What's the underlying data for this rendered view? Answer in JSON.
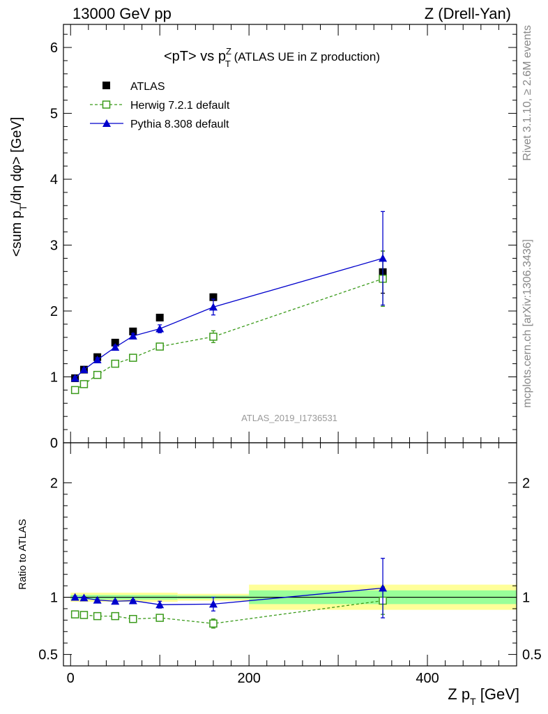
{
  "header": {
    "left": "13000 GeV pp",
    "right": "Z (Drell-Yan)"
  },
  "side_text": {
    "rivet": "Rivet 3.1.10, ≥ 2.6M events",
    "mcplots": "mcplots.cern.ch [arXiv:1306.3436]"
  },
  "colors": {
    "atlas": "#000000",
    "herwig": "#3a9a1a",
    "pythia": "#0000cc",
    "band_inner": "#99ff99",
    "band_outer": "#ffff99"
  },
  "chart_data": [
    {
      "type": "scatter",
      "title": "<pT> vs p_T^Z (ATLAS UE in Z production)",
      "title_parts": {
        "main": "<pT> vs p",
        "sup": "Z",
        "sub": "T",
        "rest": " (ATLAS UE in Z production)"
      },
      "ylabel": "<sum p_T/dη dφ> [GeV]",
      "ylabel_parts": {
        "pre": "<sum p",
        "sub": "T",
        "post": "/dη dφ> [GeV]"
      },
      "watermark": "ATLAS_2019_I1736531",
      "xlim": [
        -8,
        500
      ],
      "ylim": [
        0,
        6.35
      ],
      "yticks": [
        0,
        1,
        2,
        3,
        4,
        5,
        6
      ],
      "ytick_labels": [
        "0",
        "1",
        "2",
        "3",
        "4",
        "5",
        "6"
      ],
      "grid": false,
      "legend_position": "top-left",
      "series": [
        {
          "name": "ATLAS",
          "style": "square-marker",
          "x": [
            5,
            15,
            30,
            50,
            70,
            100,
            160,
            350
          ],
          "y": [
            0.98,
            1.11,
            1.3,
            1.52,
            1.69,
            1.9,
            2.21,
            2.59
          ],
          "err": [
            0.02,
            0.02,
            0.02,
            0.03,
            0.03,
            0.03,
            0.05,
            0.32
          ]
        },
        {
          "name": "Herwig 7.2.1 default",
          "style": "dashed-open-square",
          "x": [
            5,
            15,
            30,
            50,
            70,
            100,
            160,
            350
          ],
          "y": [
            0.8,
            0.89,
            1.03,
            1.2,
            1.29,
            1.46,
            1.61,
            2.49
          ],
          "err": [
            0.02,
            0.02,
            0.03,
            0.03,
            0.03,
            0.04,
            0.09,
            0.42
          ]
        },
        {
          "name": "Pythia 8.308 default",
          "style": "solid-triangle",
          "x": [
            5,
            15,
            30,
            50,
            70,
            100,
            160,
            350
          ],
          "y": [
            0.98,
            1.11,
            1.26,
            1.45,
            1.62,
            1.73,
            2.06,
            2.8
          ],
          "err": [
            0.02,
            0.02,
            0.03,
            0.03,
            0.04,
            0.06,
            0.12,
            0.71
          ]
        }
      ]
    },
    {
      "type": "scatter",
      "ylabel": "Ratio to ATLAS",
      "xlabel": "Z p_T [GeV]",
      "xlabel_parts": {
        "pre": "Z p",
        "sub": "T",
        "post": " [GeV]"
      },
      "xlim": [
        -8,
        500
      ],
      "ylim": [
        0.4,
        2.35
      ],
      "xticks": [
        0,
        200,
        400
      ],
      "xtick_labels": [
        "0",
        "200",
        "400"
      ],
      "yticks": [
        0.5,
        1,
        2
      ],
      "ytick_labels": [
        "0.5",
        "1",
        "2"
      ],
      "grid": false,
      "reference_line": 1,
      "bands": [
        {
          "x0": 0,
          "x1": 120,
          "inner": [
            0.98,
            1.02
          ],
          "outer": [
            0.96,
            1.04
          ]
        },
        {
          "x0": 120,
          "x1": 200,
          "inner": [
            0.985,
            1.015
          ],
          "outer": [
            0.97,
            1.03
          ]
        },
        {
          "x0": 200,
          "x1": 500,
          "inner": [
            0.94,
            1.06
          ],
          "outer": [
            0.89,
            1.11
          ]
        }
      ],
      "series": [
        {
          "name": "Herwig 7.2.1 default",
          "style": "dashed-open-square",
          "x": [
            5,
            15,
            30,
            50,
            70,
            100,
            160,
            350
          ],
          "y": [
            0.85,
            0.845,
            0.835,
            0.835,
            0.81,
            0.82,
            0.77,
            0.97
          ],
          "err": [
            0.01,
            0.01,
            0.01,
            0.01,
            0.01,
            0.01,
            0.04,
            0.12
          ]
        },
        {
          "name": "Pythia 8.308 default",
          "style": "solid-triangle",
          "x": [
            5,
            15,
            30,
            50,
            70,
            100,
            160,
            350
          ],
          "y": [
            1.0,
            0.995,
            0.975,
            0.965,
            0.97,
            0.935,
            0.94,
            1.08
          ],
          "err": [
            0.01,
            0.01,
            0.01,
            0.01,
            0.01,
            0.03,
            0.06,
            0.26
          ]
        }
      ]
    }
  ]
}
